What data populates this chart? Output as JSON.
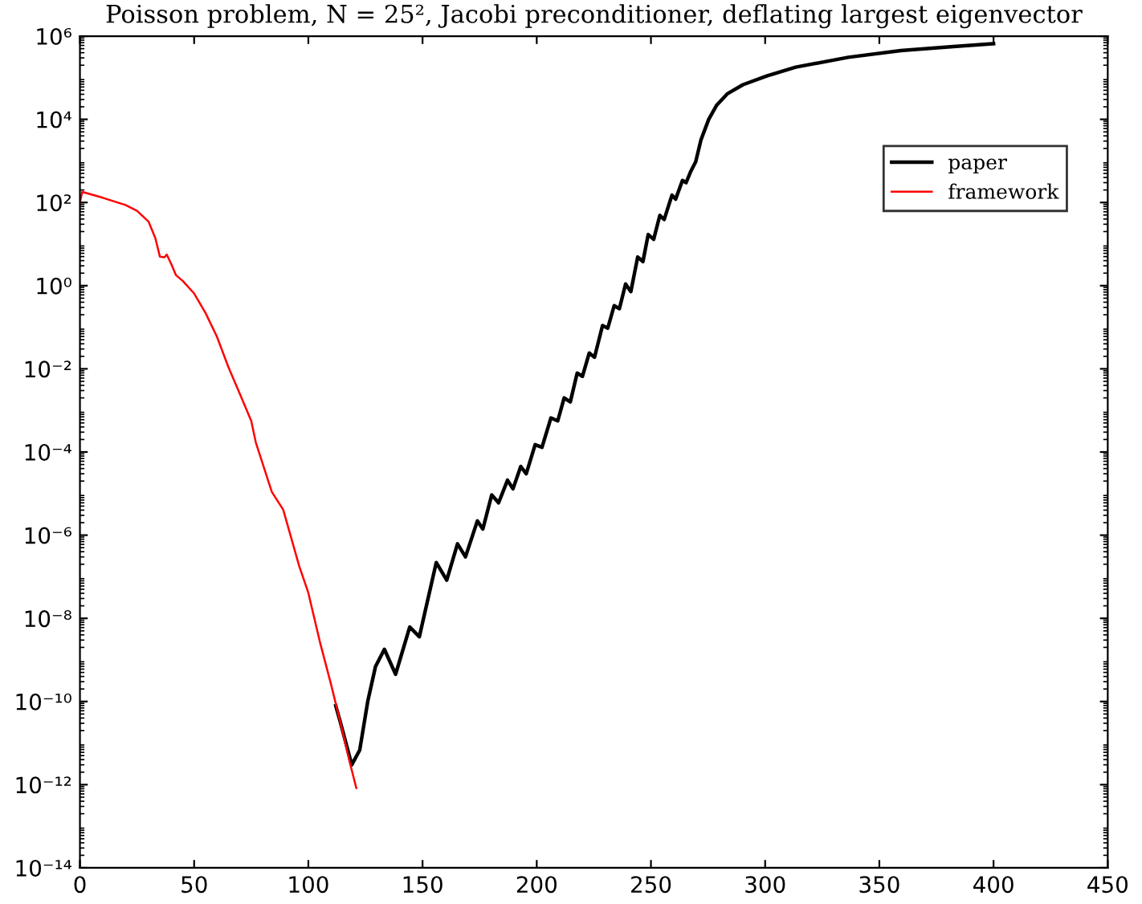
{
  "chart_data": {
    "type": "line",
    "title": "Poisson problem, N = 25², Jacobi preconditioner, deflating largest eigenvector",
    "log": "y",
    "xlim": [
      0,
      450
    ],
    "xticks": [
      0,
      50,
      100,
      150,
      200,
      250,
      300,
      350,
      400,
      450
    ],
    "ylim": [
      1e-14,
      1000000.0
    ],
    "yticks": [
      {
        "value": 1e-14,
        "label": "10⁻¹⁴"
      },
      {
        "value": 1e-12,
        "label": "10⁻¹²"
      },
      {
        "value": 1e-10,
        "label": "10⁻¹⁰"
      },
      {
        "value": 1e-08,
        "label": "10⁻⁸"
      },
      {
        "value": 1e-06,
        "label": "10⁻⁶"
      },
      {
        "value": 0.0001,
        "label": "10⁻⁴"
      },
      {
        "value": 0.01,
        "label": "10⁻²"
      },
      {
        "value": 1,
        "label": "10⁰"
      },
      {
        "value": 100,
        "label": "10²"
      },
      {
        "value": 10000.0,
        "label": "10⁴"
      },
      {
        "value": 1000000.0,
        "label": "10⁶"
      }
    ],
    "grid": false,
    "legend": "top right",
    "marker": "none",
    "line_style": "solid",
    "series": [
      {
        "name": "paper",
        "color": "#000000",
        "x": [
          112,
          114,
          119,
          122.5,
          126,
          129.4,
          133.3,
          138.2,
          144.4,
          148.6,
          156,
          160.6,
          165.3,
          168.8,
          174,
          176.4,
          180.3,
          183.3,
          187.2,
          189.6,
          193,
          195.4,
          199.3,
          202.3,
          206.2,
          209.2,
          212,
          214.7,
          217.7,
          220,
          223,
          225.3,
          228.8,
          231.1,
          233.9,
          236.2,
          238.9,
          241.2,
          244.2,
          246.5,
          248.8,
          251.2,
          253.9,
          255.8,
          259.2,
          260.8,
          263.8,
          265.4,
          267.3,
          269.6,
          271.9,
          275.3,
          278.8,
          283.4,
          290.3,
          300.7,
          313.4,
          336.4,
          359.4,
          382.4,
          400
        ],
        "values": [
          7.9e-11,
          3.2e-11,
          3e-12,
          6.8e-12,
          1e-10,
          6.9e-10,
          1.8e-09,
          4.5e-10,
          6.2e-09,
          3.6e-09,
          2.2e-07,
          8.3e-08,
          6.2e-07,
          3e-07,
          2.2e-06,
          1.4e-06,
          9.3e-06,
          6e-06,
          2.1e-05,
          1.3e-05,
          4.5e-05,
          3e-05,
          0.00015,
          0.00013,
          0.00066,
          0.00056,
          0.002,
          0.0016,
          0.0079,
          0.0066,
          0.024,
          0.019,
          0.11,
          0.095,
          0.33,
          0.28,
          1.1,
          0.72,
          4.9,
          3.8,
          17,
          13,
          49,
          39,
          150,
          120,
          340,
          300,
          540,
          950,
          3200,
          10000.0,
          22000.0,
          41000.0,
          68000.0,
          110000.0,
          180000.0,
          310000.0,
          450000.0,
          560000.0,
          660000.0
        ]
      },
      {
        "name": "framework",
        "color": "#ff0000",
        "x": [
          0,
          1,
          10,
          20,
          25,
          30,
          33,
          35,
          37,
          38,
          40,
          42,
          45,
          50,
          55,
          60,
          65,
          70,
          75,
          77,
          84,
          89,
          96,
          100,
          105,
          110,
          114,
          118,
          121
        ],
        "values": [
          100,
          180,
          130,
          87,
          63,
          35,
          14,
          5.0,
          4.8,
          5.6,
          3.3,
          1.8,
          1.3,
          0.65,
          0.22,
          0.059,
          0.011,
          0.0025,
          0.00056,
          0.00017,
          1.1e-05,
          4.1e-06,
          1.8e-07,
          4.1e-08,
          2.8e-09,
          2.5e-10,
          3.2e-11,
          3.7e-12,
          8.3e-13
        ]
      }
    ]
  }
}
